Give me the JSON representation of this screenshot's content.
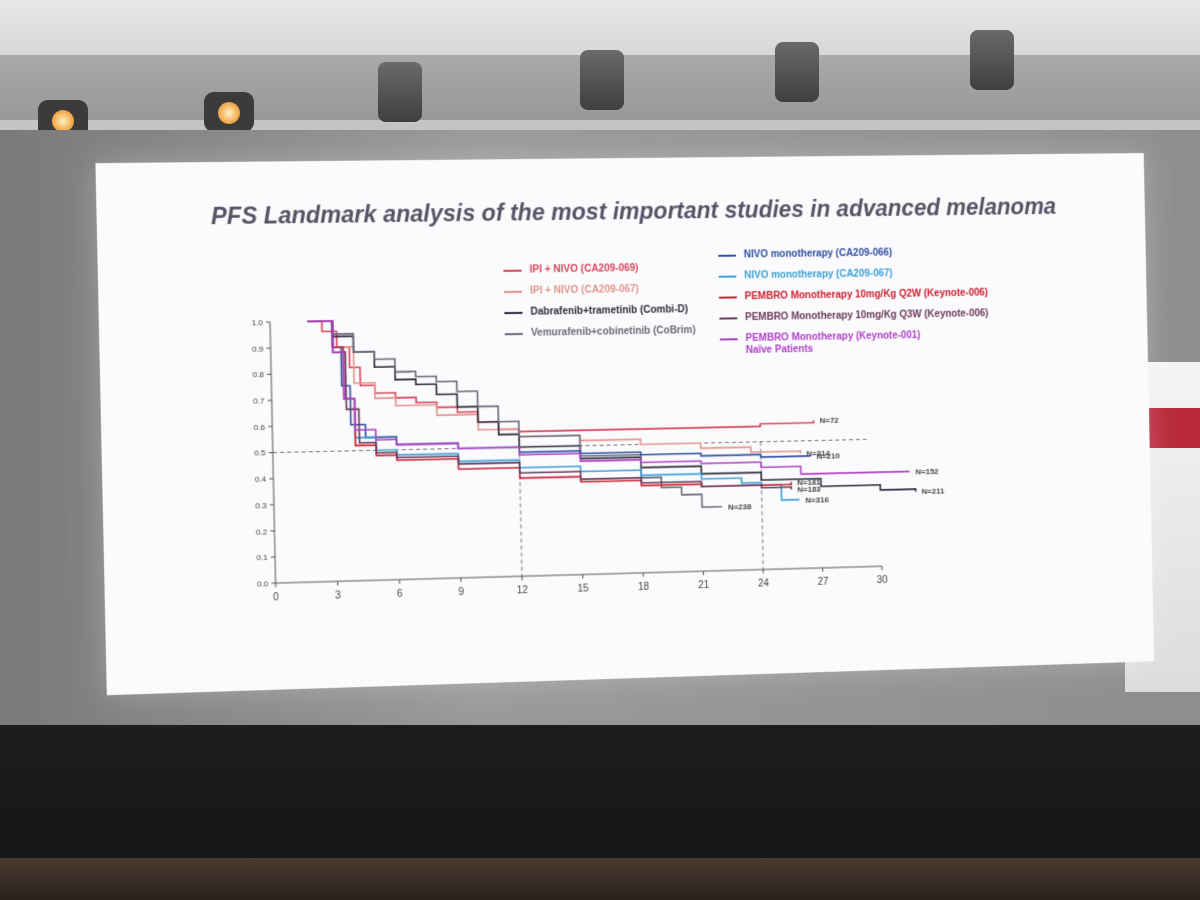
{
  "slide": {
    "title": "PFS Landmark analysis of the most important studies in advanced melanoma"
  },
  "legend_left": [
    {
      "label": "IPI + NIVO (CA209-069)",
      "color": "#d9455a"
    },
    {
      "label": "IPI + NIVO (CA209-067)",
      "color": "#e2948a"
    },
    {
      "label": "Dabrafenib+trametinib (Combi-D)",
      "color": "#2a2a3a"
    },
    {
      "label": "Vemurafenib+cobinetinib (CoBrim)",
      "color": "#6a6a7a"
    }
  ],
  "legend_right": [
    {
      "label": "NIVO monotherapy (CA209-066)",
      "color": "#3050a0"
    },
    {
      "label": "NIVO monotherapy (CA209-067)",
      "color": "#3aa0d8"
    },
    {
      "label": "PEMBRO Monotherapy 10mg/Kg Q2W (Keynote-006)",
      "color": "#cc2030"
    },
    {
      "label": "PEMBRO Monotherapy 10mg/Kg Q3W (Keynote-006)",
      "color": "#6a3a5a"
    },
    {
      "label": "PEMBRO Monotherapy (Keynote-001)",
      "label2": "Naïve Patients",
      "color": "#b040c8"
    }
  ],
  "chart_data": {
    "type": "line",
    "xlim": [
      0,
      30
    ],
    "ylim": [
      0,
      1.0
    ],
    "x_ticks": [
      "0",
      "3",
      "6",
      "9",
      "12",
      "15",
      "18",
      "21",
      "24",
      "27",
      "30"
    ],
    "y_ticks": [
      "0.0",
      "0.1",
      "0.2",
      "0.3",
      "0.4",
      "0.5",
      "0.6",
      "0.7",
      "0.8",
      "0.9",
      "1.0"
    ],
    "reference_lines": {
      "y": 0.5,
      "x": [
        12,
        24
      ]
    },
    "series": [
      {
        "name": "IPI + NIVO (CA209-069)",
        "color": "#d9455a",
        "n_label": "N=72",
        "x": [
          1.8,
          2.5,
          3.2,
          3.8,
          4.3,
          5,
          6,
          7,
          8,
          9,
          10,
          11,
          12,
          15,
          18,
          21,
          24,
          26.7
        ],
        "y": [
          1.0,
          0.96,
          0.9,
          0.82,
          0.75,
          0.72,
          0.7,
          0.68,
          0.66,
          0.64,
          0.6,
          0.57,
          0.56,
          0.56,
          0.56,
          0.56,
          0.57,
          0.58
        ]
      },
      {
        "name": "IPI + NIVO (CA209-067)",
        "color": "#e2948a",
        "n_label": "N=314",
        "x": [
          1.8,
          3,
          4,
          5,
          6,
          8,
          10,
          12,
          15,
          18,
          21,
          23.5,
          26
        ],
        "y": [
          1.0,
          0.9,
          0.76,
          0.7,
          0.67,
          0.63,
          0.57,
          0.54,
          0.52,
          0.5,
          0.48,
          0.46,
          0.45
        ]
      },
      {
        "name": "Dabrafenib+trametinib (Combi-D)",
        "color": "#2a2a3a",
        "n_label": "N=211",
        "x": [
          1.8,
          3,
          4,
          5,
          6,
          7,
          8,
          9,
          10,
          11,
          12,
          15,
          18,
          21,
          24,
          27,
          30,
          31.8
        ],
        "y": [
          1.0,
          0.94,
          0.88,
          0.82,
          0.77,
          0.75,
          0.71,
          0.66,
          0.6,
          0.55,
          0.5,
          0.45,
          0.41,
          0.38,
          0.35,
          0.32,
          0.3,
          0.29
        ]
      },
      {
        "name": "Vemurafenib+cobinetinib (CoBrim)",
        "color": "#6a6a7a",
        "n_label": "N=238",
        "x": [
          1.8,
          3,
          4,
          5,
          6,
          7,
          8,
          9,
          10,
          11,
          12,
          15,
          18,
          19,
          20,
          21,
          22
        ],
        "y": [
          1.0,
          0.95,
          0.88,
          0.85,
          0.8,
          0.78,
          0.76,
          0.72,
          0.66,
          0.6,
          0.54,
          0.46,
          0.37,
          0.33,
          0.3,
          0.25,
          0.25
        ]
      },
      {
        "name": "NIVO monotherapy (CA209-066)",
        "color": "#3050a0",
        "n_label": "N=210",
        "x": [
          1.8,
          3,
          3.4,
          3.8,
          4.5,
          6,
          9,
          12,
          15,
          18,
          21,
          24,
          26.5
        ],
        "y": [
          1.0,
          0.9,
          0.75,
          0.6,
          0.55,
          0.52,
          0.5,
          0.48,
          0.47,
          0.46,
          0.45,
          0.44,
          0.44
        ]
      },
      {
        "name": "NIVO monotherapy (CA209-067)",
        "color": "#3aa0d8",
        "n_label": "N=316",
        "x": [
          1.8,
          3,
          3.5,
          4,
          5,
          6,
          9,
          12,
          15,
          18,
          21,
          23,
          24,
          25,
          25.9
        ],
        "y": [
          1.0,
          0.9,
          0.7,
          0.55,
          0.5,
          0.48,
          0.45,
          0.42,
          0.4,
          0.38,
          0.36,
          0.34,
          0.33,
          0.27,
          0.27
        ]
      },
      {
        "name": "PEMBRO Monotherapy 10mg/Kg Q2W (Keynote-006)",
        "color": "#cc2030",
        "n_label": "N=181",
        "x": [
          1.8,
          3,
          3.5,
          4,
          5,
          6,
          9,
          12,
          15,
          18,
          21,
          24,
          25.5
        ],
        "y": [
          1.0,
          0.9,
          0.7,
          0.52,
          0.48,
          0.46,
          0.42,
          0.38,
          0.36,
          0.34,
          0.33,
          0.33,
          0.34
        ]
      },
      {
        "name": "PEMBRO Monotherapy 10mg/Kg Q3W (Keynote-006)",
        "color": "#6a3a5a",
        "n_label": "N=183",
        "x": [
          1.8,
          3,
          3.6,
          4.2,
          5,
          6,
          9,
          12,
          15,
          18,
          21,
          24,
          25.5
        ],
        "y": [
          1.0,
          0.88,
          0.66,
          0.53,
          0.49,
          0.47,
          0.44,
          0.4,
          0.37,
          0.35,
          0.33,
          0.32,
          0.31
        ]
      },
      {
        "name": "PEMBRO Monotherapy (Keynote-001)",
        "color": "#b040c8",
        "n_label": "N=152",
        "x": [
          1.8,
          3,
          3.5,
          4,
          5,
          6,
          9,
          12,
          15,
          18,
          21,
          24,
          26,
          29,
          31.5
        ],
        "y": [
          1.0,
          0.88,
          0.7,
          0.58,
          0.54,
          0.52,
          0.5,
          0.47,
          0.44,
          0.43,
          0.42,
          0.4,
          0.37,
          0.37,
          0.37
        ]
      }
    ]
  }
}
